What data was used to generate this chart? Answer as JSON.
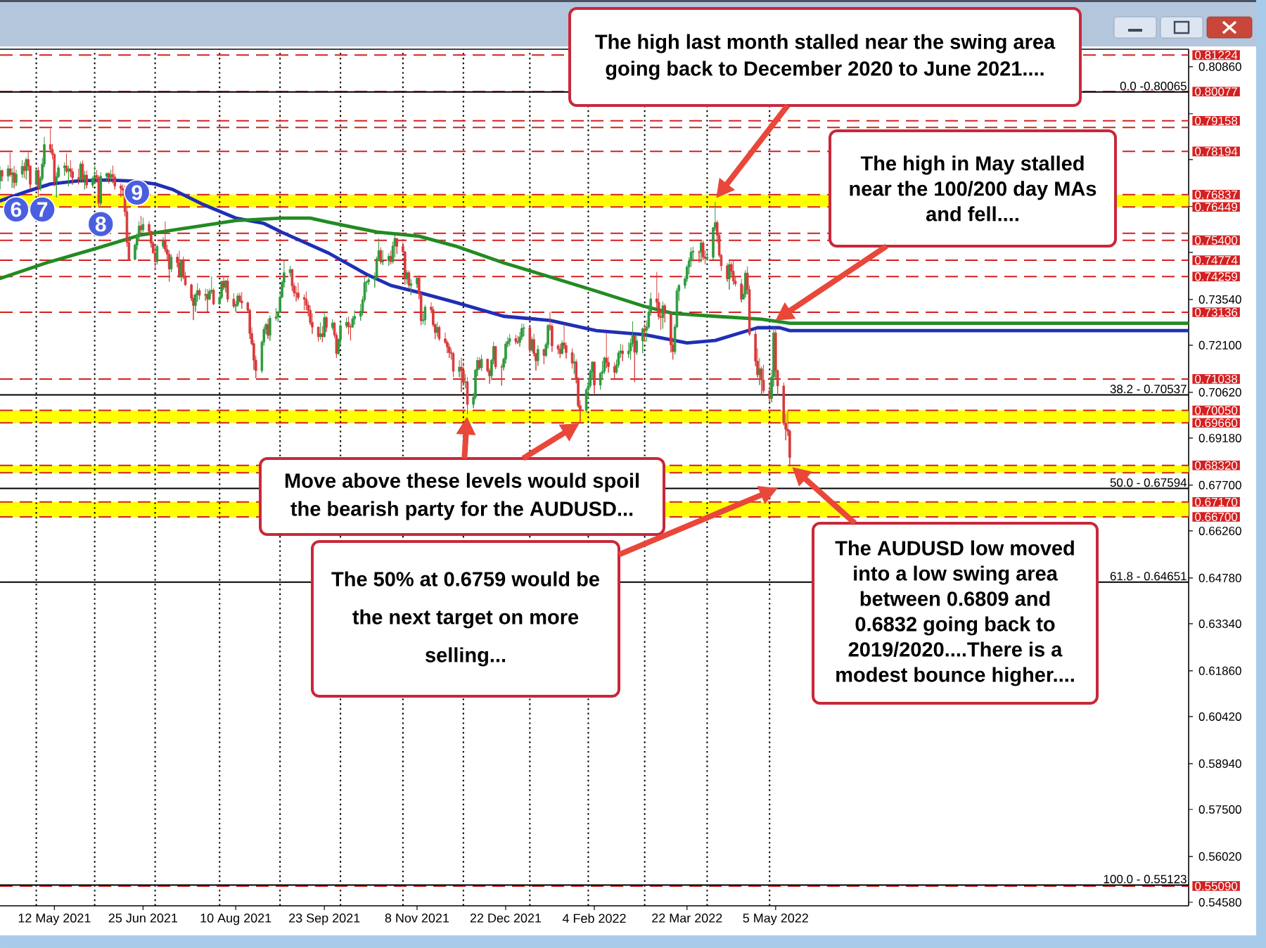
{
  "chart_data": {
    "type": "candlestick",
    "x": [
      "2021-04-15",
      "2021-04-16",
      "2021-04-19",
      "2021-04-20",
      "2021-04-21",
      "2021-04-22",
      "2021-04-23",
      "2021-04-26",
      "2021-04-27",
      "2021-04-28",
      "2021-04-29",
      "2021-04-30",
      "2021-05-03",
      "2021-05-04",
      "2021-05-05",
      "2021-05-06",
      "2021-05-07",
      "2021-05-10",
      "2021-05-11",
      "2021-05-12",
      "2021-05-13",
      "2021-05-14",
      "2021-05-17",
      "2021-05-18",
      "2021-05-19",
      "2021-05-20",
      "2021-05-21",
      "2021-05-24",
      "2021-05-25",
      "2021-05-26",
      "2021-05-27",
      "2021-05-28",
      "2021-05-31",
      "2021-06-01",
      "2021-06-02",
      "2021-06-03",
      "2021-06-04",
      "2021-06-07",
      "2021-06-08",
      "2021-06-09",
      "2021-06-10",
      "2021-06-11",
      "2021-06-14",
      "2021-06-15",
      "2021-06-16",
      "2021-06-17",
      "2021-06-18",
      "2021-06-21",
      "2021-06-22",
      "2021-06-23",
      "2021-06-24",
      "2021-06-25",
      "2021-06-28",
      "2021-06-29",
      "2021-06-30",
      "2021-07-01",
      "2021-07-02",
      "2021-07-05",
      "2021-07-06",
      "2021-07-07",
      "2021-07-08",
      "2021-07-09",
      "2021-07-12",
      "2021-07-13",
      "2021-07-14",
      "2021-07-15",
      "2021-07-16",
      "2021-07-19",
      "2021-07-20",
      "2021-07-21",
      "2021-07-22",
      "2021-07-23",
      "2021-07-26",
      "2021-07-27",
      "2021-07-28",
      "2021-07-29",
      "2021-07-30",
      "2021-08-02",
      "2021-08-03",
      "2021-08-04",
      "2021-08-05",
      "2021-08-06",
      "2021-08-09",
      "2021-08-10",
      "2021-08-11",
      "2021-08-12",
      "2021-08-13",
      "2021-08-16",
      "2021-08-17",
      "2021-08-18",
      "2021-08-19",
      "2021-08-20",
      "2021-08-23",
      "2021-08-24",
      "2021-08-25",
      "2021-08-26",
      "2021-08-27",
      "2021-08-30",
      "2021-08-31",
      "2021-09-01",
      "2021-09-02",
      "2021-09-03",
      "2021-09-06",
      "2021-09-07",
      "2021-09-08",
      "2021-09-09",
      "2021-09-10",
      "2021-09-13",
      "2021-09-14",
      "2021-09-15",
      "2021-09-16",
      "2021-09-17",
      "2021-09-20",
      "2021-09-21",
      "2021-09-22",
      "2021-09-23",
      "2021-09-24",
      "2021-09-27",
      "2021-09-28",
      "2021-09-29",
      "2021-09-30",
      "2021-10-01",
      "2021-10-04",
      "2021-10-05",
      "2021-10-06",
      "2021-10-07",
      "2021-10-08",
      "2021-10-11",
      "2021-10-12",
      "2021-10-13",
      "2021-10-14",
      "2021-10-15",
      "2021-10-18",
      "2021-10-19",
      "2021-10-20",
      "2021-10-21",
      "2021-10-22",
      "2021-10-25",
      "2021-10-26",
      "2021-10-27",
      "2021-10-28",
      "2021-10-29",
      "2021-11-01",
      "2021-11-02",
      "2021-11-03",
      "2021-11-04",
      "2021-11-05",
      "2021-11-08",
      "2021-11-09",
      "2021-11-10",
      "2021-11-11",
      "2021-11-12",
      "2021-11-15",
      "2021-11-16",
      "2021-11-17",
      "2021-11-18",
      "2021-11-19",
      "2021-11-22",
      "2021-11-23",
      "2021-11-24",
      "2021-11-25",
      "2021-11-26",
      "2021-11-29",
      "2021-11-30",
      "2021-12-01",
      "2021-12-02",
      "2021-12-03",
      "2021-12-06",
      "2021-12-07",
      "2021-12-08",
      "2021-12-09",
      "2021-12-10",
      "2021-12-13",
      "2021-12-14",
      "2021-12-15",
      "2021-12-16",
      "2021-12-17",
      "2021-12-20",
      "2021-12-21",
      "2021-12-22",
      "2021-12-23",
      "2021-12-24",
      "2021-12-27",
      "2021-12-28",
      "2021-12-29",
      "2021-12-30",
      "2021-12-31",
      "2022-01-03",
      "2022-01-04",
      "2022-01-05",
      "2022-01-06",
      "2022-01-07",
      "2022-01-10",
      "2022-01-11",
      "2022-01-12",
      "2022-01-13",
      "2022-01-14",
      "2022-01-17",
      "2022-01-18",
      "2022-01-19",
      "2022-01-20",
      "2022-01-21",
      "2022-01-24",
      "2022-01-25",
      "2022-01-26",
      "2022-01-27",
      "2022-01-28",
      "2022-01-31",
      "2022-02-01",
      "2022-02-02",
      "2022-02-03",
      "2022-02-04",
      "2022-02-07",
      "2022-02-08",
      "2022-02-09",
      "2022-02-10",
      "2022-02-11",
      "2022-02-14",
      "2022-02-15",
      "2022-02-16",
      "2022-02-17",
      "2022-02-18",
      "2022-02-21",
      "2022-02-22",
      "2022-02-23",
      "2022-02-24",
      "2022-02-25",
      "2022-02-28",
      "2022-03-01",
      "2022-03-02",
      "2022-03-03",
      "2022-03-04",
      "2022-03-07",
      "2022-03-08",
      "2022-03-09",
      "2022-03-10",
      "2022-03-11",
      "2022-03-14",
      "2022-03-15",
      "2022-03-16",
      "2022-03-17",
      "2022-03-18",
      "2022-03-21",
      "2022-03-22",
      "2022-03-23",
      "2022-03-24",
      "2022-03-25",
      "2022-03-28",
      "2022-03-29",
      "2022-03-30",
      "2022-03-31",
      "2022-04-01",
      "2022-04-04",
      "2022-04-05",
      "2022-04-06",
      "2022-04-07",
      "2022-04-08",
      "2022-04-11",
      "2022-04-12",
      "2022-04-13",
      "2022-04-14",
      "2022-04-15",
      "2022-04-18",
      "2022-04-19",
      "2022-04-20",
      "2022-04-21",
      "2022-04-22",
      "2022-04-25",
      "2022-04-26",
      "2022-04-27",
      "2022-04-28",
      "2022-04-29",
      "2022-05-02",
      "2022-05-03",
      "2022-05-04",
      "2022-05-05",
      "2022-05-06",
      "2022-05-09",
      "2022-05-10",
      "2022-05-11",
      "2022-05-12"
    ],
    "ohlc": [
      [
        0.7727,
        0.7773,
        0.7701,
        0.7759
      ],
      [
        0.7759,
        0.7763,
        0.7725,
        0.7742
      ],
      [
        0.7742,
        0.7777,
        0.7725,
        0.7765
      ],
      [
        0.7765,
        0.7816,
        0.774,
        0.7746
      ],
      [
        0.7746,
        0.7767,
        0.7705,
        0.7752
      ],
      [
        0.7752,
        0.7774,
        0.7704,
        0.7722
      ],
      [
        0.7722,
        0.7762,
        0.7711,
        0.7748
      ],
      [
        0.7748,
        0.7792,
        0.7737,
        0.7772
      ],
      [
        0.7772,
        0.7785,
        0.7736,
        0.7759
      ],
      [
        0.7759,
        0.78,
        0.7731,
        0.7794
      ],
      [
        0.7794,
        0.7817,
        0.7759,
        0.7774
      ],
      [
        0.7774,
        0.7775,
        0.7702,
        0.7716
      ],
      [
        0.7716,
        0.7766,
        0.7713,
        0.776
      ],
      [
        0.776,
        0.777,
        0.7675,
        0.7705
      ],
      [
        0.7705,
        0.7742,
        0.7696,
        0.7735
      ],
      [
        0.7735,
        0.7799,
        0.7727,
        0.778
      ],
      [
        0.778,
        0.7865,
        0.777,
        0.7841
      ],
      [
        0.7841,
        0.7891,
        0.7815,
        0.7826
      ],
      [
        0.7826,
        0.7843,
        0.7795,
        0.781
      ],
      [
        0.781,
        0.7815,
        0.771,
        0.7724
      ],
      [
        0.7724,
        0.7754,
        0.7675,
        0.774
      ],
      [
        0.774,
        0.7778,
        0.7736,
        0.7768
      ],
      [
        0.7768,
        0.7785,
        0.7743,
        0.7774
      ],
      [
        0.7774,
        0.7813,
        0.7751,
        0.7757
      ],
      [
        0.7757,
        0.7775,
        0.771,
        0.7765
      ],
      [
        0.7765,
        0.7792,
        0.7739,
        0.7756
      ],
      [
        0.7756,
        0.7767,
        0.7715,
        0.7737
      ],
      [
        0.7737,
        0.7765,
        0.7716,
        0.7734
      ],
      [
        0.7734,
        0.7787,
        0.7722,
        0.778
      ],
      [
        0.778,
        0.7791,
        0.7722,
        0.773
      ],
      [
        0.773,
        0.7758,
        0.77,
        0.7745
      ],
      [
        0.7745,
        0.776,
        0.7704,
        0.7714
      ],
      [
        0.7714,
        0.7742,
        0.7706,
        0.7735
      ],
      [
        0.7735,
        0.7775,
        0.772,
        0.7744
      ],
      [
        0.7744,
        0.7761,
        0.7721,
        0.7737
      ],
      [
        0.7737,
        0.7745,
        0.7646,
        0.7657
      ],
      [
        0.7657,
        0.7754,
        0.765,
        0.7741
      ],
      [
        0.7741,
        0.7753,
        0.7727,
        0.775
      ],
      [
        0.775,
        0.7754,
        0.7719,
        0.7737
      ],
      [
        0.7737,
        0.7762,
        0.7725,
        0.7747
      ],
      [
        0.7747,
        0.7775,
        0.7719,
        0.7739
      ],
      [
        0.7739,
        0.7749,
        0.77,
        0.7711
      ],
      [
        0.7711,
        0.7719,
        0.7676,
        0.7703
      ],
      [
        0.7703,
        0.7716,
        0.768,
        0.7698
      ],
      [
        0.7698,
        0.7712,
        0.7615,
        0.763
      ],
      [
        0.763,
        0.7646,
        0.752,
        0.7533
      ],
      [
        0.7533,
        0.756,
        0.7477,
        0.748
      ],
      [
        0.748,
        0.7531,
        0.7478,
        0.7525
      ],
      [
        0.7525,
        0.7563,
        0.751,
        0.7553
      ],
      [
        0.7553,
        0.76,
        0.7542,
        0.7585
      ],
      [
        0.7585,
        0.7617,
        0.7565,
        0.7573
      ],
      [
        0.7573,
        0.7611,
        0.7566,
        0.759
      ],
      [
        0.759,
        0.76,
        0.7559,
        0.7568
      ],
      [
        0.7568,
        0.757,
        0.7517,
        0.7531
      ],
      [
        0.7531,
        0.7538,
        0.75,
        0.75
      ],
      [
        0.75,
        0.7521,
        0.7446,
        0.7473
      ],
      [
        0.7473,
        0.7526,
        0.7464,
        0.7521
      ],
      [
        0.7521,
        0.7551,
        0.7514,
        0.7537
      ],
      [
        0.7537,
        0.7599,
        0.7502,
        0.7511
      ],
      [
        0.7511,
        0.7526,
        0.7478,
        0.7496
      ],
      [
        0.7496,
        0.7509,
        0.741,
        0.745
      ],
      [
        0.745,
        0.7496,
        0.744,
        0.7487
      ],
      [
        0.7487,
        0.7498,
        0.7455,
        0.747
      ],
      [
        0.747,
        0.7507,
        0.7422,
        0.7426
      ],
      [
        0.7426,
        0.7479,
        0.7411,
        0.7476
      ],
      [
        0.7476,
        0.7489,
        0.7418,
        0.7426
      ],
      [
        0.7426,
        0.7441,
        0.7397,
        0.74
      ],
      [
        0.74,
        0.7404,
        0.7349,
        0.7358
      ],
      [
        0.7358,
        0.7369,
        0.7289,
        0.7335
      ],
      [
        0.7335,
        0.7375,
        0.7315,
        0.7369
      ],
      [
        0.7369,
        0.7405,
        0.7347,
        0.7382
      ],
      [
        0.7382,
        0.7389,
        0.7354,
        0.7367
      ],
      [
        0.7367,
        0.7388,
        0.735,
        0.737
      ],
      [
        0.737,
        0.7387,
        0.7316,
        0.7355
      ],
      [
        0.7355,
        0.7388,
        0.7352,
        0.738
      ],
      [
        0.738,
        0.7427,
        0.7372,
        0.7383
      ],
      [
        0.7383,
        0.7389,
        0.7336,
        0.734
      ],
      [
        0.734,
        0.7375,
        0.7337,
        0.7361
      ],
      [
        0.7361,
        0.7412,
        0.7355,
        0.7411
      ],
      [
        0.7411,
        0.7427,
        0.7384,
        0.7392
      ],
      [
        0.7392,
        0.7416,
        0.7376,
        0.7412
      ],
      [
        0.7412,
        0.7422,
        0.7345,
        0.7355
      ],
      [
        0.7355,
        0.7373,
        0.7327,
        0.7333
      ],
      [
        0.7333,
        0.7349,
        0.7315,
        0.7338
      ],
      [
        0.7338,
        0.7374,
        0.7331,
        0.7365
      ],
      [
        0.7365,
        0.7375,
        0.7345,
        0.7349
      ],
      [
        0.7349,
        0.7377,
        0.7325,
        0.7343
      ],
      [
        0.7343,
        0.7348,
        0.7316,
        0.732
      ],
      [
        0.732,
        0.7325,
        0.723,
        0.7247
      ],
      [
        0.7247,
        0.7266,
        0.721,
        0.7215
      ],
      [
        0.7215,
        0.7226,
        0.7133,
        0.7163
      ],
      [
        0.7163,
        0.7177,
        0.7106,
        0.713
      ],
      [
        0.713,
        0.7225,
        0.7123,
        0.722
      ],
      [
        0.722,
        0.7269,
        0.7209,
        0.726
      ],
      [
        0.726,
        0.7281,
        0.7245,
        0.7275
      ],
      [
        0.7275,
        0.7293,
        0.723,
        0.7241
      ],
      [
        0.7241,
        0.7304,
        0.7224,
        0.7295
      ],
      [
        0.7295,
        0.7327,
        0.7287,
        0.7299
      ],
      [
        0.7299,
        0.7317,
        0.7283,
        0.7313
      ],
      [
        0.7313,
        0.7379,
        0.7312,
        0.7362
      ],
      [
        0.7362,
        0.7414,
        0.7358,
        0.7408
      ],
      [
        0.7408,
        0.7478,
        0.7392,
        0.7438
      ],
      [
        0.7438,
        0.746,
        0.7425,
        0.7448
      ],
      [
        0.7448,
        0.7451,
        0.7381,
        0.7397
      ],
      [
        0.7397,
        0.7407,
        0.7363,
        0.7375
      ],
      [
        0.7375,
        0.7396,
        0.7348,
        0.7374
      ],
      [
        0.7374,
        0.7407,
        0.7353,
        0.736
      ],
      [
        0.736,
        0.737,
        0.732,
        0.7355
      ],
      [
        0.7355,
        0.7379,
        0.732,
        0.7336
      ],
      [
        0.7336,
        0.7348,
        0.7301,
        0.732
      ],
      [
        0.732,
        0.7336,
        0.7274,
        0.7282
      ],
      [
        0.7282,
        0.731,
        0.7246,
        0.7267
      ],
      [
        0.7267,
        0.7268,
        0.7222,
        0.7237
      ],
      [
        0.7237,
        0.7282,
        0.7228,
        0.7246
      ],
      [
        0.7246,
        0.727,
        0.722,
        0.7237
      ],
      [
        0.7237,
        0.7316,
        0.7235,
        0.7297
      ],
      [
        0.7297,
        0.7303,
        0.7252,
        0.7266
      ],
      [
        0.7266,
        0.7292,
        0.7259,
        0.728
      ],
      [
        0.728,
        0.7284,
        0.7233,
        0.7242
      ],
      [
        0.7242,
        0.725,
        0.717,
        0.7184
      ],
      [
        0.7184,
        0.7232,
        0.718,
        0.7228
      ],
      [
        0.7228,
        0.7288,
        0.7208,
        0.7271
      ],
      [
        0.7271,
        0.7297,
        0.7264,
        0.7282
      ],
      [
        0.7282,
        0.73,
        0.7244,
        0.7268
      ],
      [
        0.7268,
        0.7277,
        0.7225,
        0.7267
      ],
      [
        0.7267,
        0.7302,
        0.7265,
        0.7293
      ],
      [
        0.7293,
        0.732,
        0.7275,
        0.7301
      ],
      [
        0.7301,
        0.734,
        0.7287,
        0.7317
      ],
      [
        0.7317,
        0.7364,
        0.7304,
        0.7353
      ],
      [
        0.7353,
        0.7423,
        0.7345,
        0.7407
      ],
      [
        0.7407,
        0.7413,
        0.7377,
        0.741
      ],
      [
        0.741,
        0.7429,
        0.74,
        0.7416
      ],
      [
        0.7416,
        0.7439,
        0.7391,
        0.7422
      ],
      [
        0.7422,
        0.7489,
        0.7419,
        0.7482
      ],
      [
        0.7482,
        0.7546,
        0.7478,
        0.7508
      ],
      [
        0.7508,
        0.7518,
        0.7465,
        0.7472
      ],
      [
        0.7472,
        0.7509,
        0.7462,
        0.7476
      ],
      [
        0.7476,
        0.75,
        0.746,
        0.749
      ],
      [
        0.749,
        0.7508,
        0.7465,
        0.7473
      ],
      [
        0.7473,
        0.7536,
        0.7467,
        0.7522
      ],
      [
        0.7522,
        0.7556,
        0.7487,
        0.7546
      ],
      [
        0.7546,
        0.7546,
        0.7497,
        0.7521
      ],
      [
        0.7521,
        0.7535,
        0.75,
        0.7504
      ],
      [
        0.7504,
        0.7505,
        0.74,
        0.7418
      ],
      [
        0.7418,
        0.7446,
        0.7403,
        0.7438
      ],
      [
        0.7438,
        0.7445,
        0.7387,
        0.7398
      ],
      [
        0.7398,
        0.7418,
        0.7368,
        0.7403
      ],
      [
        0.7403,
        0.7427,
        0.739,
        0.7421
      ],
      [
        0.7421,
        0.743,
        0.7355,
        0.7371
      ],
      [
        0.7371,
        0.7376,
        0.7273,
        0.7287
      ],
      [
        0.7287,
        0.731,
        0.7276,
        0.729
      ],
      [
        0.729,
        0.7337,
        0.7273,
        0.733
      ],
      [
        0.733,
        0.7345,
        0.7311,
        0.7322
      ],
      [
        0.7322,
        0.7333,
        0.7268,
        0.7275
      ],
      [
        0.7275,
        0.7278,
        0.7229,
        0.725
      ],
      [
        0.725,
        0.7283,
        0.7237,
        0.7266
      ],
      [
        0.7266,
        0.7272,
        0.7224,
        0.723
      ],
      [
        0.723,
        0.725,
        0.7215,
        0.7219
      ],
      [
        0.7219,
        0.7226,
        0.7185,
        0.7205
      ],
      [
        0.7205,
        0.7215,
        0.717,
        0.7187
      ],
      [
        0.7187,
        0.72,
        0.7165,
        0.7184
      ],
      [
        0.7184,
        0.719,
        0.711,
        0.7128
      ],
      [
        0.7128,
        0.7163,
        0.711,
        0.7141
      ],
      [
        0.7141,
        0.7171,
        0.7063,
        0.7131
      ],
      [
        0.7131,
        0.7157,
        0.7082,
        0.7093
      ],
      [
        0.7093,
        0.712,
        0.7075,
        0.7095
      ],
      [
        0.7095,
        0.711,
        0.6993,
        0.7024
      ],
      [
        0.7024,
        0.706,
        0.7012,
        0.7047
      ],
      [
        0.7047,
        0.7136,
        0.704,
        0.7132
      ],
      [
        0.7132,
        0.7173,
        0.7113,
        0.7162
      ],
      [
        0.7162,
        0.7172,
        0.7133,
        0.7139
      ],
      [
        0.7139,
        0.718,
        0.7129,
        0.7166
      ],
      [
        0.7166,
        0.7168,
        0.7125,
        0.713
      ],
      [
        0.713,
        0.7138,
        0.7089,
        0.7114
      ],
      [
        0.7114,
        0.7167,
        0.71,
        0.7163
      ],
      [
        0.7163,
        0.7221,
        0.715,
        0.7206
      ],
      [
        0.7206,
        0.7208,
        0.7135,
        0.7142
      ],
      [
        0.7142,
        0.715,
        0.7083,
        0.7141
      ],
      [
        0.7141,
        0.7172,
        0.7131,
        0.7166
      ],
      [
        0.7166,
        0.7222,
        0.7152,
        0.7214
      ],
      [
        0.7214,
        0.7236,
        0.7204,
        0.7222
      ],
      [
        0.7222,
        0.7246,
        0.7208,
        0.7231
      ],
      [
        0.7231,
        0.7243,
        0.7213,
        0.7222
      ],
      [
        0.7222,
        0.724,
        0.7214,
        0.7219
      ],
      [
        0.7219,
        0.7252,
        0.7206,
        0.7236
      ],
      [
        0.7236,
        0.7278,
        0.7227,
        0.7263
      ],
      [
        0.7263,
        0.7277,
        0.7238,
        0.7265
      ],
      [
        0.7265,
        0.7274,
        0.7186,
        0.7196
      ],
      [
        0.7196,
        0.7237,
        0.719,
        0.7228
      ],
      [
        0.7228,
        0.7246,
        0.7175,
        0.7184
      ],
      [
        0.7184,
        0.7186,
        0.713,
        0.7161
      ],
      [
        0.7161,
        0.721,
        0.7145,
        0.7197
      ],
      [
        0.7197,
        0.7198,
        0.715,
        0.7178
      ],
      [
        0.7178,
        0.7219,
        0.7173,
        0.7212
      ],
      [
        0.7212,
        0.7277,
        0.72,
        0.7272
      ],
      [
        0.7272,
        0.7315,
        0.7257,
        0.727
      ],
      [
        0.727,
        0.7279,
        0.7189,
        0.7208
      ],
      [
        0.7208,
        0.7214,
        0.7182,
        0.7198
      ],
      [
        0.7198,
        0.7214,
        0.717,
        0.7184
      ],
      [
        0.7184,
        0.7225,
        0.7181,
        0.7217
      ],
      [
        0.7217,
        0.7277,
        0.7198,
        0.7209
      ],
      [
        0.7209,
        0.7219,
        0.7168,
        0.7187
      ],
      [
        0.7187,
        0.72,
        0.7137,
        0.7154
      ],
      [
        0.7154,
        0.7184,
        0.712,
        0.7158
      ],
      [
        0.7158,
        0.7166,
        0.709,
        0.7106
      ],
      [
        0.7106,
        0.711,
        0.7014,
        0.702
      ],
      [
        0.702,
        0.7037,
        0.6967,
        0.7005
      ],
      [
        0.7005,
        0.7076,
        0.6998,
        0.707
      ],
      [
        0.707,
        0.7104,
        0.7044,
        0.7083
      ],
      [
        0.7083,
        0.7134,
        0.7076,
        0.7128
      ],
      [
        0.7128,
        0.716,
        0.7102,
        0.7157
      ],
      [
        0.7157,
        0.7158,
        0.7058,
        0.7085
      ],
      [
        0.7085,
        0.7125,
        0.707,
        0.7122
      ],
      [
        0.7122,
        0.716,
        0.7102,
        0.7128
      ],
      [
        0.7128,
        0.7175,
        0.712,
        0.717
      ],
      [
        0.717,
        0.7249,
        0.7138,
        0.7156
      ],
      [
        0.7156,
        0.7174,
        0.7124,
        0.7143
      ],
      [
        0.7143,
        0.7156,
        0.7101,
        0.7125
      ],
      [
        0.7125,
        0.7165,
        0.712,
        0.7148
      ],
      [
        0.7148,
        0.7193,
        0.714,
        0.7186
      ],
      [
        0.7186,
        0.7214,
        0.717,
        0.7192
      ],
      [
        0.7192,
        0.7212,
        0.716,
        0.7183
      ],
      [
        0.7183,
        0.722,
        0.717,
        0.7192
      ],
      [
        0.7192,
        0.7231,
        0.7165,
        0.7216
      ],
      [
        0.7216,
        0.7285,
        0.7205,
        0.724
      ],
      [
        0.724,
        0.7243,
        0.7094,
        0.7188
      ],
      [
        0.7188,
        0.7244,
        0.718,
        0.7224
      ],
      [
        0.7224,
        0.7266,
        0.7185,
        0.7262
      ],
      [
        0.7262,
        0.7279,
        0.7222,
        0.7257
      ],
      [
        0.7257,
        0.7288,
        0.7222,
        0.7267
      ],
      [
        0.7267,
        0.7336,
        0.7262,
        0.7315
      ],
      [
        0.7315,
        0.7376,
        0.7303,
        0.7356
      ],
      [
        0.7356,
        0.7441,
        0.7324,
        0.7345
      ],
      [
        0.7345,
        0.7375,
        0.7291,
        0.73
      ],
      [
        0.73,
        0.7323,
        0.7258,
        0.7297
      ],
      [
        0.7297,
        0.7347,
        0.7262,
        0.7334
      ],
      [
        0.7334,
        0.7341,
        0.7282,
        0.731
      ],
      [
        0.731,
        0.7312,
        0.7187,
        0.7211
      ],
      [
        0.7211,
        0.7234,
        0.7165,
        0.719
      ],
      [
        0.719,
        0.7276,
        0.7181,
        0.7268
      ],
      [
        0.7268,
        0.739,
        0.7264,
        0.7381
      ],
      [
        0.7381,
        0.7403,
        0.735,
        0.7398
      ],
      [
        0.7398,
        0.7428,
        0.7388,
        0.7419
      ],
      [
        0.7419,
        0.7463,
        0.741,
        0.7456
      ],
      [
        0.7456,
        0.7486,
        0.7433,
        0.7475
      ],
      [
        0.7475,
        0.7518,
        0.7456,
        0.7503
      ],
      [
        0.7503,
        0.752,
        0.7473,
        0.7506
      ],
      [
        0.7503,
        0.7508,
        0.747,
        0.7502
      ],
      [
        0.7502,
        0.7539,
        0.7471,
        0.7532
      ],
      [
        0.7532,
        0.754,
        0.7477,
        0.7488
      ],
      [
        0.7488,
        0.7508,
        0.7465,
        0.7483
      ],
      [
        0.7483,
        0.751,
        0.7475,
        0.7487
      ],
      [
        0.7487,
        0.758,
        0.748,
        0.758
      ],
      [
        0.758,
        0.7661,
        0.757,
        0.7596
      ],
      [
        0.7596,
        0.7603,
        0.7534,
        0.7556
      ],
      [
        0.7556,
        0.7559,
        0.7487,
        0.7493
      ],
      [
        0.7493,
        0.7497,
        0.7444,
        0.746
      ],
      [
        0.746,
        0.7468,
        0.741,
        0.7419
      ],
      [
        0.7419,
        0.7477,
        0.7385,
        0.7464
      ],
      [
        0.7464,
        0.7473,
        0.743,
        0.7443
      ],
      [
        0.7443,
        0.7478,
        0.74,
        0.7412
      ],
      [
        0.7412,
        0.7428,
        0.7395,
        0.7403
      ],
      [
        0.7403,
        0.7419,
        0.7345,
        0.7355
      ],
      [
        0.7355,
        0.7398,
        0.7355,
        0.7371
      ],
      [
        0.7371,
        0.7446,
        0.736,
        0.7437
      ],
      [
        0.7437,
        0.7458,
        0.737,
        0.7385
      ],
      [
        0.7385,
        0.7399,
        0.724,
        0.7245
      ],
      [
        0.7245,
        0.7257,
        0.7144,
        0.716
      ],
      [
        0.716,
        0.72,
        0.7108,
        0.7117
      ],
      [
        0.7117,
        0.717,
        0.7085,
        0.7136
      ],
      [
        0.7136,
        0.7143,
        0.7054,
        0.7101
      ],
      [
        0.7101,
        0.7149,
        0.706,
        0.7067
      ],
      [
        0.7067,
        0.7093,
        0.703,
        0.7043
      ],
      [
        0.7043,
        0.7133,
        0.7031,
        0.711
      ],
      [
        0.711,
        0.7266,
        0.708,
        0.7249
      ],
      [
        0.7249,
        0.7264,
        0.7104,
        0.713
      ],
      [
        0.713,
        0.7134,
        0.7052,
        0.7082
      ],
      [
        0.7082,
        0.7093,
        0.6958,
        0.6965
      ],
      [
        0.6965,
        0.6994,
        0.6911,
        0.6946
      ],
      [
        0.6946,
        0.7003,
        0.6925,
        0.694
      ],
      [
        0.694,
        0.6946,
        0.6829,
        0.6857
      ]
    ],
    "series": [
      {
        "type": "line",
        "color": "#1f2fb5",
        "x": [
          "2021-04-15",
          "2021-04-29",
          "2021-05-10",
          "2021-05-24",
          "2021-06-07",
          "2021-06-21",
          "2021-07-01",
          "2021-07-10",
          "2021-07-24",
          "2021-08-10",
          "2021-08-24",
          "2021-09-02",
          "2021-09-25",
          "2021-10-14",
          "2021-10-26",
          "2021-11-09",
          "2021-11-27",
          "2021-12-21",
          "2022-01-13",
          "2022-02-05",
          "2022-03-01",
          "2022-03-22",
          "2022-04-05",
          "2022-04-17",
          "2022-04-26",
          "2022-05-07",
          "2022-05-12",
          "2022-11-26"
        ],
        "values": [
          0.7664,
          0.7695,
          0.7717,
          0.7727,
          0.773,
          0.7726,
          0.7717,
          0.7699,
          0.7655,
          0.761,
          0.7593,
          0.7565,
          0.75,
          0.7433,
          0.7398,
          0.7376,
          0.7345,
          0.7301,
          0.7288,
          0.7256,
          0.7243,
          0.7217,
          0.7225,
          0.7248,
          0.7265,
          0.7265,
          0.7256,
          0.7256
        ]
      },
      {
        "type": "line",
        "color": "#228b22",
        "x": [
          "2021-04-15",
          "2021-05-08",
          "2021-06-01",
          "2021-06-24",
          "2021-07-17",
          "2021-08-10",
          "2021-09-02",
          "2021-09-16",
          "2021-09-25",
          "2021-10-19",
          "2021-11-09",
          "2021-11-27",
          "2021-12-21",
          "2022-01-13",
          "2022-02-05",
          "2022-03-01",
          "2022-03-15",
          "2022-04-05",
          "2022-04-28",
          "2022-05-12",
          "2022-11-26"
        ],
        "values": [
          0.742,
          0.7469,
          0.7513,
          0.7557,
          0.7579,
          0.7602,
          0.761,
          0.761,
          0.7597,
          0.7566,
          0.7553,
          0.7522,
          0.7469,
          0.7425,
          0.738,
          0.7332,
          0.731,
          0.7301,
          0.7292,
          0.7279,
          0.7279
        ]
      }
    ],
    "xlim": [
      "2021-04-15",
      "2022-11-26"
    ],
    "xticks": [
      {
        "value": "2021-05-12",
        "label": "12 May 2021"
      },
      {
        "value": "2021-06-25",
        "label": "25 Jun 2021"
      },
      {
        "value": "2021-08-10",
        "label": "10 Aug 2021"
      },
      {
        "value": "2021-09-23",
        "label": "23 Sep 2021"
      },
      {
        "value": "2021-11-08",
        "label": "8 Nov 2021"
      },
      {
        "value": "2021-12-22",
        "label": "22 Dec 2021"
      },
      {
        "value": "2022-02-04",
        "label": "4 Feb 2022"
      },
      {
        "value": "2022-03-22",
        "label": "22 Mar 2022"
      },
      {
        "value": "2022-05-05",
        "label": "5 May 2022"
      }
    ],
    "ylim": [
      0.5447,
      0.8141
    ],
    "yticks": [
      {
        "value": 0.8086,
        "label": "0.80860"
      },
      {
        "value": 0.7938,
        "label": null
      },
      {
        "value": 0.7794,
        "label": null
      },
      {
        "value": 0.7646,
        "label": null
      },
      {
        "value": 0.7502,
        "label": null
      },
      {
        "value": 0.7354,
        "label": "0.73540"
      },
      {
        "value": 0.721,
        "label": "0.72100"
      },
      {
        "value": 0.7062,
        "label": "0.70620"
      },
      {
        "value": 0.6918,
        "label": "0.69180"
      },
      {
        "value": 0.677,
        "label": "0.67700"
      },
      {
        "value": 0.6626,
        "label": "0.66260"
      },
      {
        "value": 0.6478,
        "label": "0.64780"
      },
      {
        "value": 0.6334,
        "label": "0.63340"
      },
      {
        "value": 0.6186,
        "label": "0.61860"
      },
      {
        "value": 0.6042,
        "label": "0.60420"
      },
      {
        "value": 0.5894,
        "label": "0.58940"
      },
      {
        "value": 0.575,
        "label": "0.57500"
      },
      {
        "value": 0.5602,
        "label": "0.56020"
      },
      {
        "value": 0.5458,
        "label": "0.54580"
      }
    ],
    "bands": [
      {
        "axis": "y",
        "from": 0.76449,
        "to": 0.76837,
        "color": "#ffff00"
      },
      {
        "axis": "y",
        "from": 0.6966,
        "to": 0.7005,
        "color": "#ffff00"
      },
      {
        "axis": "y",
        "from": 0.6809,
        "to": 0.6832,
        "color": "#ffff00"
      },
      {
        "axis": "y",
        "from": 0.667,
        "to": 0.6717,
        "color": "#ffff00"
      }
    ],
    "ref_lines": [
      {
        "axis": "x",
        "value": "2021-05-03",
        "color": "#000000",
        "line_style": "dotted"
      },
      {
        "axis": "x",
        "value": "2021-06-01",
        "color": "#000000",
        "line_style": "dotted"
      },
      {
        "axis": "x",
        "value": "2021-07-01",
        "color": "#000000",
        "line_style": "dotted"
      },
      {
        "axis": "x",
        "value": "2021-08-02",
        "color": "#000000",
        "line_style": "dotted"
      },
      {
        "axis": "x",
        "value": "2021-09-01",
        "color": "#000000",
        "line_style": "dotted"
      },
      {
        "axis": "x",
        "value": "2021-10-01",
        "color": "#000000",
        "line_style": "dotted"
      },
      {
        "axis": "x",
        "value": "2021-11-01",
        "color": "#000000",
        "line_style": "dotted"
      },
      {
        "axis": "x",
        "value": "2021-12-01",
        "color": "#000000",
        "line_style": "dotted"
      },
      {
        "axis": "x",
        "value": "2022-01-03",
        "color": "#000000",
        "line_style": "dotted"
      },
      {
        "axis": "x",
        "value": "2022-02-01",
        "color": "#000000",
        "line_style": "dotted"
      },
      {
        "axis": "x",
        "value": "2022-03-01",
        "color": "#000000",
        "line_style": "dotted"
      },
      {
        "axis": "x",
        "value": "2022-04-01",
        "color": "#000000",
        "line_style": "dotted"
      },
      {
        "axis": "x",
        "value": "2022-05-02",
        "color": "#000000",
        "line_style": "dotted"
      },
      {
        "axis": "y",
        "value": 0.81224,
        "label": "0.81224",
        "color": "#d42020",
        "line_style": "dashed"
      },
      {
        "axis": "y",
        "value": 0.80077,
        "label": "0.80077",
        "color": "#d42020",
        "line_style": "dashed"
      },
      {
        "axis": "y",
        "value": 0.79158,
        "label": "0.79158",
        "color": "#d42020",
        "line_style": "dashed"
      },
      {
        "axis": "y",
        "value": 0.7895,
        "color": "#d42020",
        "line_style": "dashed"
      },
      {
        "axis": "y",
        "value": 0.78194,
        "label": "0.78194",
        "color": "#d42020",
        "line_style": "dashed"
      },
      {
        "axis": "y",
        "value": 0.76837,
        "label": "0.76837",
        "color": "#d42020",
        "line_style": "dashed"
      },
      {
        "axis": "y",
        "value": 0.76449,
        "label": "0.76449",
        "color": "#d42020",
        "line_style": "dashed"
      },
      {
        "axis": "y",
        "value": 0.7562,
        "color": "#d42020",
        "line_style": "dashed"
      },
      {
        "axis": "y",
        "value": 0.754,
        "label": "0.75400",
        "color": "#d42020",
        "line_style": "dashed"
      },
      {
        "axis": "y",
        "value": 0.74774,
        "label": "0.74774",
        "color": "#d42020",
        "line_style": "dashed"
      },
      {
        "axis": "y",
        "value": 0.74259,
        "label": "0.74259",
        "color": "#d42020",
        "line_style": "dashed"
      },
      {
        "axis": "y",
        "value": 0.73136,
        "label": "0.73136",
        "color": "#d42020",
        "line_style": "dashed"
      },
      {
        "axis": "y",
        "value": 0.71038,
        "label": "0.71038",
        "color": "#d42020",
        "line_style": "dashed"
      },
      {
        "axis": "y",
        "value": 0.7005,
        "label": "0.70050",
        "color": "#d42020",
        "line_style": "dashed"
      },
      {
        "axis": "y",
        "value": 0.6966,
        "label": "0.69660",
        "color": "#d42020",
        "line_style": "dashed"
      },
      {
        "axis": "y",
        "value": 0.6832,
        "label": "0.68320",
        "color": "#d42020",
        "line_style": "dashed"
      },
      {
        "axis": "y",
        "value": 0.6809,
        "color": "#d42020",
        "line_style": "dashed"
      },
      {
        "axis": "y",
        "value": 0.6717,
        "label": "0.67170",
        "color": "#d42020",
        "line_style": "dashed"
      },
      {
        "axis": "y",
        "value": 0.667,
        "label": "0.66700",
        "color": "#d42020",
        "line_style": "dashed"
      },
      {
        "axis": "y",
        "value": 0.5509,
        "label": "0.55090",
        "color": "#d42020",
        "line_style": "dashed"
      },
      {
        "axis": "y",
        "value": 0.80065,
        "color": "#000000",
        "line_style": "solid"
      },
      {
        "axis": "y",
        "value": 0.70537,
        "color": "#000000",
        "line_style": "solid"
      },
      {
        "axis": "y",
        "value": 0.67594,
        "color": "#000000",
        "line_style": "solid"
      },
      {
        "axis": "y",
        "value": 0.64651,
        "color": "#000000",
        "line_style": "solid"
      },
      {
        "axis": "y",
        "value": 0.55123,
        "color": "#000000",
        "line_style": "solid"
      }
    ],
    "annotations": [
      "The high last month stalled near the swing area going back to December 2020 to June 2021....",
      "The high in May stalled near the 100/200 day MAs and fell....",
      "Move above these levels would spoil the bearish party for the AUDUSD...",
      "The 50% at 0.6759 would be the next target on more selling...",
      "The AUDUSD low moved into a low swing area between 0.6809 and 0.6832 going back to 2019/2020....There is a modest bounce higher....",
      {
        "text": "0.0 -0.80065",
        "x": "2022-11-26",
        "y": 0.80065
      },
      {
        "text": "38.2 - 0.70537",
        "x": "2022-11-26",
        "y": 0.70537
      },
      {
        "text": "50.0 - 0.67594",
        "x": "2022-11-26",
        "y": 0.67594
      },
      {
        "text": "61.8 - 0.64651",
        "x": "2022-11-26",
        "y": 0.64651
      },
      {
        "text": "100.0 - 0.55123",
        "x": "2022-11-26",
        "y": 0.55123
      },
      {
        "text": "6",
        "x": "2021-04-23",
        "y": 0.7637
      },
      {
        "text": "7",
        "x": "2021-05-06",
        "y": 0.7637
      },
      {
        "text": "8",
        "x": "2021-06-04",
        "y": 0.7591
      },
      {
        "text": "9",
        "x": "2021-06-22",
        "y": 0.769
      }
    ]
  }
}
